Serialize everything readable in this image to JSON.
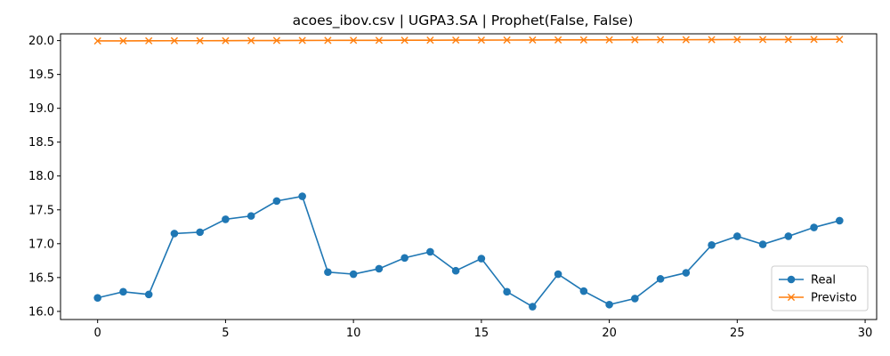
{
  "chart_data": {
    "type": "line",
    "title": "acoes_ibov.csv | UGPA3.SA | Prophet(False, False)",
    "xlabel": "",
    "ylabel": "",
    "xlim": [
      -1.45,
      30.45
    ],
    "ylim": [
      15.88,
      20.1
    ],
    "xticks": [
      0,
      5,
      10,
      15,
      20,
      25,
      30
    ],
    "yticks": [
      16.0,
      16.5,
      17.0,
      17.5,
      18.0,
      18.5,
      19.0,
      19.5,
      20.0
    ],
    "grid": false,
    "legend": "lower-right",
    "x": [
      0,
      1,
      2,
      3,
      4,
      5,
      6,
      7,
      8,
      9,
      10,
      11,
      12,
      13,
      14,
      15,
      16,
      17,
      18,
      19,
      20,
      21,
      22,
      23,
      24,
      25,
      26,
      27,
      28,
      29
    ],
    "series": [
      {
        "name": "Real",
        "color": "#1f77b4",
        "marker": "circle",
        "values": [
          16.2,
          16.29,
          16.25,
          17.15,
          17.17,
          17.36,
          17.41,
          17.63,
          17.7,
          16.58,
          16.55,
          16.63,
          16.79,
          16.88,
          16.6,
          16.78,
          16.29,
          16.07,
          16.55,
          16.3,
          16.1,
          16.19,
          16.48,
          16.57,
          16.98,
          17.11,
          16.99,
          17.11,
          17.24,
          17.34
        ]
      },
      {
        "name": "Previsto",
        "color": "#ff7f0e",
        "marker": "x",
        "values": [
          19.995,
          19.996,
          19.997,
          19.998,
          19.998,
          19.999,
          20.0,
          20.001,
          20.002,
          20.003,
          20.004,
          20.004,
          20.005,
          20.006,
          20.007,
          20.007,
          20.008,
          20.009,
          20.01,
          20.01,
          20.011,
          20.012,
          20.013,
          20.013,
          20.014,
          20.015,
          20.015,
          20.016,
          20.017,
          20.018
        ]
      }
    ]
  }
}
